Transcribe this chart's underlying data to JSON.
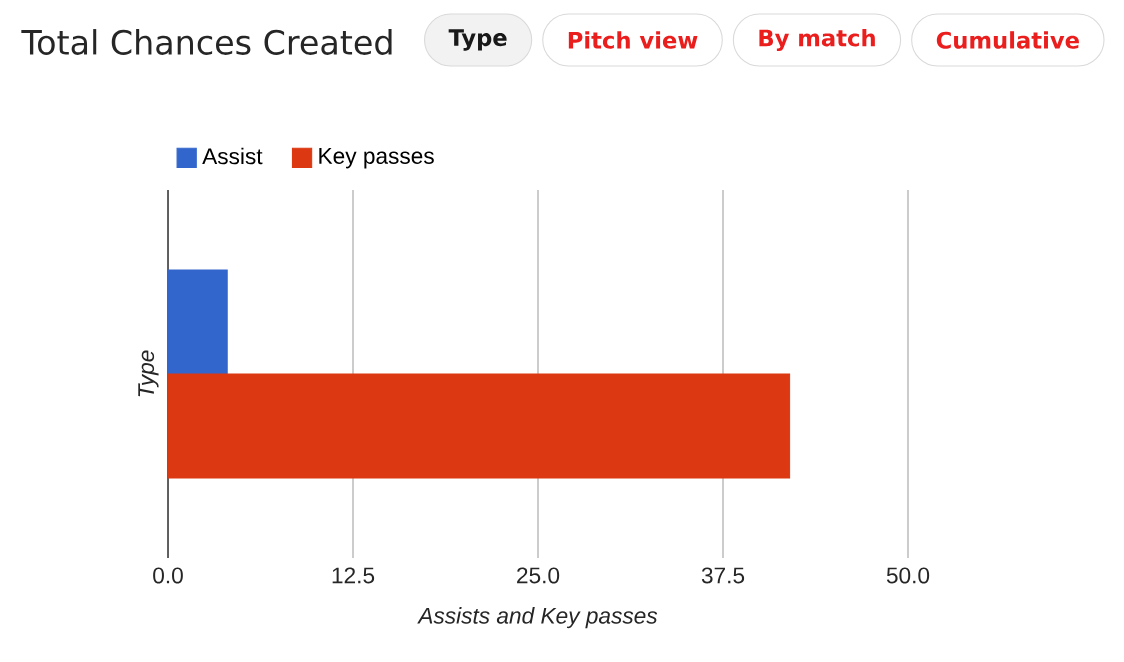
{
  "chart_data": {
    "type": "bar",
    "orientation": "horizontal",
    "title": "Total Chances Created",
    "annotations": [
      "Type",
      "Pitch view",
      "By match",
      "Cumulative"
    ],
    "categories": [
      null
    ],
    "series": [
      {
        "name": "Assist",
        "color": "#3366cc",
        "values": [
          4
        ]
      },
      {
        "name": "Key passes",
        "color": "#dc3912",
        "values": [
          42
        ]
      }
    ],
    "xlabel": "Assists and Key passes",
    "ylabel": "Type",
    "xlim": [
      0,
      50
    ],
    "xticks": [
      {
        "value": 0,
        "label": "0.0"
      },
      {
        "value": 12.5,
        "label": "12.5"
      },
      {
        "value": 25,
        "label": "25.0"
      },
      {
        "value": 37.5,
        "label": "37.5"
      },
      {
        "value": 50,
        "label": "50.0"
      }
    ],
    "grid": "x",
    "legend": "top left"
  }
}
